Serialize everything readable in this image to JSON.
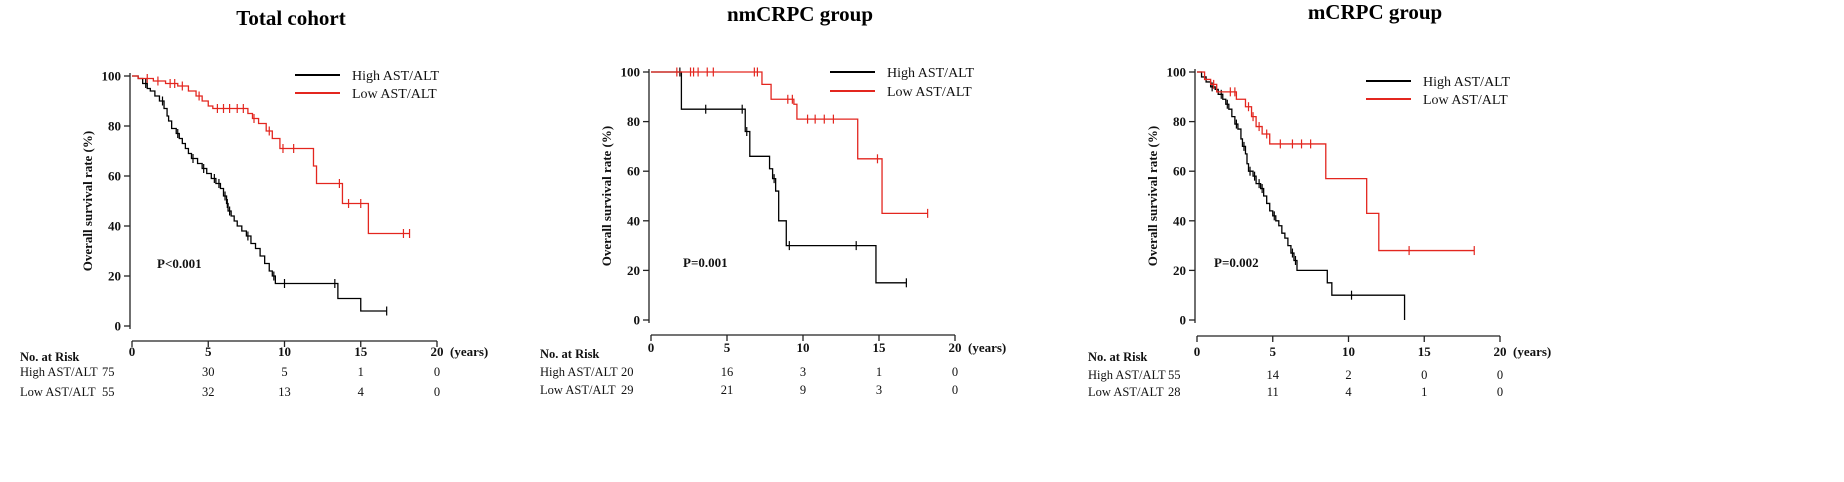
{
  "chart_data": [
    {
      "type": "line",
      "title": "Total cohort",
      "xlabel": "(years)",
      "ylabel": "Overall survival rate (%)",
      "xlim": [
        0,
        20
      ],
      "ylim": [
        0,
        100
      ],
      "xticks": [
        0,
        5,
        10,
        15,
        20
      ],
      "yticks": [
        0,
        20,
        40,
        60,
        80,
        100
      ],
      "p_value": "P<0.001",
      "legend_position": "top-right",
      "series": [
        {
          "name": "High AST/ALT",
          "color": "#000000",
          "start": 100,
          "steps": [
            [
              0.4,
              99
            ],
            [
              0.7,
              97
            ],
            [
              1.0,
              95
            ],
            [
              1.2,
              94
            ],
            [
              1.5,
              92
            ],
            [
              1.8,
              90
            ],
            [
              2.1,
              87
            ],
            [
              2.3,
              84
            ],
            [
              2.4,
              82
            ],
            [
              2.6,
              79
            ],
            [
              2.9,
              77
            ],
            [
              3.1,
              75
            ],
            [
              3.3,
              73
            ],
            [
              3.5,
              71
            ],
            [
              3.7,
              69
            ],
            [
              3.9,
              67
            ],
            [
              4.3,
              65
            ],
            [
              4.6,
              63
            ],
            [
              4.9,
              61
            ],
            [
              5.2,
              59
            ],
            [
              5.5,
              57
            ],
            [
              5.8,
              55
            ],
            [
              6.0,
              52
            ],
            [
              6.2,
              49
            ],
            [
              6.3,
              46
            ],
            [
              6.5,
              44
            ],
            [
              6.7,
              42
            ],
            [
              6.9,
              40
            ],
            [
              7.2,
              38
            ],
            [
              7.5,
              36
            ],
            [
              7.8,
              33
            ],
            [
              8.1,
              31
            ],
            [
              8.4,
              28
            ],
            [
              8.7,
              25
            ],
            [
              9.0,
              22
            ],
            [
              9.2,
              20
            ],
            [
              9.4,
              17
            ],
            [
              13.5,
              11
            ],
            [
              15.0,
              6
            ]
          ],
          "end_time": 16.7,
          "censored_times": [
            0.9,
            2.0,
            3.0,
            4.0,
            4.7,
            5.4,
            5.7,
            6.1,
            6.25,
            6.4,
            7.6,
            9.3,
            10.0,
            13.3,
            16.7
          ]
        },
        {
          "name": "Low AST/ALT",
          "color": "#e3261f",
          "start": 100,
          "steps": [
            [
              0.4,
              99
            ],
            [
              1.4,
              98
            ],
            [
              2.2,
              97
            ],
            [
              3.0,
              96
            ],
            [
              3.7,
              94
            ],
            [
              4.2,
              92
            ],
            [
              4.6,
              90
            ],
            [
              5.0,
              88
            ],
            [
              5.3,
              87
            ],
            [
              7.6,
              85
            ],
            [
              7.9,
              83
            ],
            [
              8.3,
              81
            ],
            [
              8.8,
              78
            ],
            [
              9.2,
              75
            ],
            [
              9.7,
              71
            ],
            [
              11.9,
              64
            ],
            [
              12.1,
              57
            ],
            [
              13.8,
              49
            ],
            [
              15.5,
              37
            ]
          ],
          "end_time": 18.2,
          "censored_times": [
            1.0,
            1.7,
            2.5,
            2.8,
            3.3,
            4.4,
            5.6,
            6.0,
            6.4,
            6.9,
            7.3,
            8.0,
            9.0,
            9.9,
            10.6,
            13.6,
            14.2,
            15.0,
            17.8,
            18.2
          ]
        }
      ],
      "risk_table": {
        "header": "No. at Risk",
        "times": [
          0,
          5,
          10,
          15,
          20
        ],
        "rows": [
          {
            "label": "High AST/ALT",
            "values": [
              75,
              30,
              5,
              1,
              0
            ]
          },
          {
            "label": "Low AST/ALT",
            "values": [
              55,
              32,
              13,
              4,
              0
            ]
          }
        ]
      }
    },
    {
      "type": "line",
      "title": "nmCRPC group",
      "xlabel": "(years)",
      "ylabel": "Overall survival rate (%)",
      "xlim": [
        0,
        20
      ],
      "ylim": [
        0,
        100
      ],
      "xticks": [
        0,
        5,
        10,
        15,
        20
      ],
      "yticks": [
        0,
        20,
        40,
        60,
        80,
        100
      ],
      "p_value": "P=0.001",
      "legend_position": "top-right",
      "series": [
        {
          "name": "High AST/ALT",
          "color": "#000000",
          "start": 100,
          "steps": [
            [
              2.0,
              85
            ],
            [
              6.2,
              76
            ],
            [
              6.5,
              66
            ],
            [
              7.8,
              61
            ],
            [
              8.0,
              57
            ],
            [
              8.2,
              52
            ],
            [
              8.4,
              40
            ],
            [
              8.9,
              30
            ],
            [
              14.8,
              15
            ]
          ],
          "end_time": 16.8,
          "censored_times": [
            1.9,
            3.6,
            6.0,
            6.3,
            8.1,
            9.1,
            13.5,
            16.8
          ]
        },
        {
          "name": "Low AST/ALT",
          "color": "#e3261f",
          "start": 100,
          "steps": [
            [
              7.3,
              95
            ],
            [
              7.9,
              89
            ],
            [
              9.4,
              87
            ],
            [
              9.6,
              81
            ],
            [
              13.6,
              65
            ],
            [
              15.2,
              43
            ]
          ],
          "end_time": 18.2,
          "censored_times": [
            1.7,
            2.6,
            2.8,
            3.1,
            3.7,
            4.1,
            6.8,
            7.0,
            9.0,
            9.3,
            10.3,
            10.8,
            11.4,
            12.0,
            14.9,
            18.2
          ]
        }
      ],
      "risk_table": {
        "header": "No. at Risk",
        "times": [
          0,
          5,
          10,
          15,
          20
        ],
        "rows": [
          {
            "label": "High AST/ALT",
            "values": [
              20,
              16,
              3,
              1,
              0
            ]
          },
          {
            "label": "Low AST/ALT",
            "values": [
              29,
              21,
              9,
              3,
              0
            ]
          }
        ]
      }
    },
    {
      "type": "line",
      "title": "mCRPC group",
      "xlabel": "(years)",
      "ylabel": "Overall survival rate (%)",
      "xlim": [
        0,
        20
      ],
      "ylim": [
        0,
        100
      ],
      "xticks": [
        0,
        5,
        10,
        15,
        20
      ],
      "yticks": [
        0,
        20,
        40,
        60,
        80,
        100
      ],
      "p_value": "P=0.002",
      "legend_position": "top-right",
      "series": [
        {
          "name": "High AST/ALT",
          "color": "#000000",
          "start": 100,
          "steps": [
            [
              0.3,
              98
            ],
            [
              0.6,
              96
            ],
            [
              0.9,
              94
            ],
            [
              1.2,
              93
            ],
            [
              1.4,
              91
            ],
            [
              1.7,
              89
            ],
            [
              1.9,
              87
            ],
            [
              2.1,
              85
            ],
            [
              2.3,
              82
            ],
            [
              2.5,
              79
            ],
            [
              2.7,
              77
            ],
            [
              2.9,
              73
            ],
            [
              3.0,
              70
            ],
            [
              3.2,
              67
            ],
            [
              3.3,
              63
            ],
            [
              3.4,
              60
            ],
            [
              3.7,
              58
            ],
            [
              3.9,
              55
            ],
            [
              4.2,
              53
            ],
            [
              4.4,
              50
            ],
            [
              4.6,
              47
            ],
            [
              4.8,
              44
            ],
            [
              5.0,
              42
            ],
            [
              5.2,
              40
            ],
            [
              5.4,
              38
            ],
            [
              5.6,
              35
            ],
            [
              5.8,
              33
            ],
            [
              6.0,
              30
            ],
            [
              6.2,
              27
            ],
            [
              6.4,
              24
            ],
            [
              6.6,
              20
            ],
            [
              8.6,
              15
            ],
            [
              8.9,
              10
            ],
            [
              13.7,
              0
            ]
          ],
          "end_time": 13.7,
          "censored_times": [
            1.0,
            1.6,
            2.0,
            2.6,
            3.1,
            3.5,
            3.8,
            4.1,
            4.3,
            5.1,
            6.3,
            6.5,
            10.2
          ]
        },
        {
          "name": "Low AST/ALT",
          "color": "#e3261f",
          "start": 100,
          "steps": [
            [
              0.5,
              97
            ],
            [
              0.9,
              95
            ],
            [
              1.3,
              92
            ],
            [
              2.6,
              89
            ],
            [
              3.2,
              86
            ],
            [
              3.6,
              82
            ],
            [
              3.9,
              78
            ],
            [
              4.3,
              75
            ],
            [
              4.8,
              71
            ],
            [
              8.5,
              57
            ],
            [
              11.2,
              43
            ],
            [
              12.0,
              28
            ]
          ],
          "end_time": 18.3,
          "censored_times": [
            1.1,
            2.2,
            2.5,
            3.4,
            3.7,
            4.1,
            4.6,
            5.5,
            6.3,
            6.9,
            7.5,
            14.0,
            18.3
          ]
        }
      ],
      "risk_table": {
        "header": "No. at Risk",
        "times": [
          0,
          5,
          10,
          15,
          20
        ],
        "rows": [
          {
            "label": "High AST/ALT",
            "values": [
              55,
              14,
              2,
              0,
              0
            ]
          },
          {
            "label": "Low AST/ALT",
            "values": [
              28,
              11,
              4,
              1,
              0
            ]
          }
        ]
      }
    }
  ]
}
